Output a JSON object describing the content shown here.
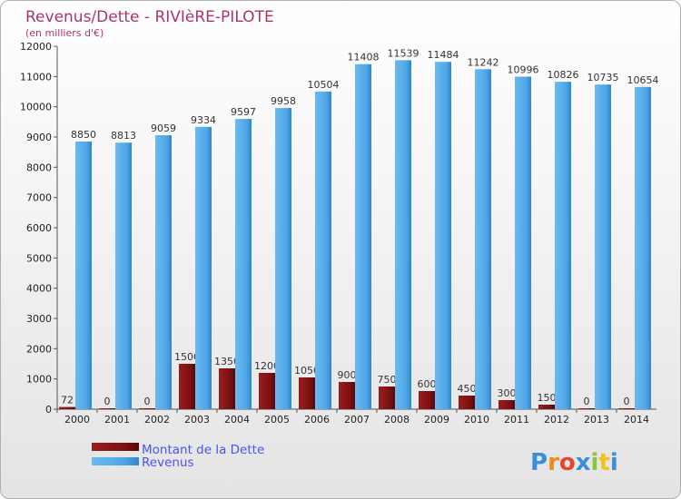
{
  "chart_data": {
    "type": "bar",
    "title": "Revenus/Dette - RIVIèRE-PILOTE",
    "subtitle": "(en milliers d'€)",
    "categories": [
      "2000",
      "2001",
      "2002",
      "2003",
      "2004",
      "2005",
      "2006",
      "2007",
      "2008",
      "2009",
      "2010",
      "2011",
      "2012",
      "2013",
      "2014"
    ],
    "series": [
      {
        "name": "Montant de la Dette",
        "color": "#7a1010",
        "values": [
          72,
          0,
          0,
          1500,
          1350,
          1200,
          1050,
          900,
          750,
          600,
          450,
          300,
          150,
          0,
          0
        ],
        "labels": [
          "72",
          "0",
          "0",
          "1500",
          "1350",
          "1200",
          "1050",
          "900",
          "750",
          "600",
          "450",
          "300",
          "150",
          "0",
          "0"
        ]
      },
      {
        "name": "Revenus",
        "color": "#4ea6e6",
        "values": [
          8850,
          8813,
          9059,
          9334,
          9597,
          9958,
          10504,
          11408,
          11539,
          11484,
          11242,
          10996,
          10826,
          10735,
          10654
        ],
        "labels": [
          "8850",
          "8813",
          "9059",
          "9334",
          "9597",
          "9958",
          "10504",
          "11408",
          "11539",
          "11484",
          "11242",
          "10996",
          "10826",
          "10735",
          "10654"
        ]
      }
    ],
    "ylim": [
      0,
      12000
    ],
    "yticks": [
      0,
      1000,
      2000,
      3000,
      4000,
      5000,
      6000,
      7000,
      8000,
      9000,
      10000,
      11000,
      12000
    ],
    "grid": false,
    "legend_position": "bottom-left"
  },
  "logo": {
    "text": "Proxiti",
    "letters": [
      "P",
      "r",
      "o",
      "x",
      "i",
      "t",
      "i"
    ],
    "colors": [
      "#3a8fd6",
      "#f08a1c",
      "#e8462c",
      "#3a8fd6",
      "#8cc43c",
      "#f2c220",
      "#3a8fd6"
    ]
  }
}
